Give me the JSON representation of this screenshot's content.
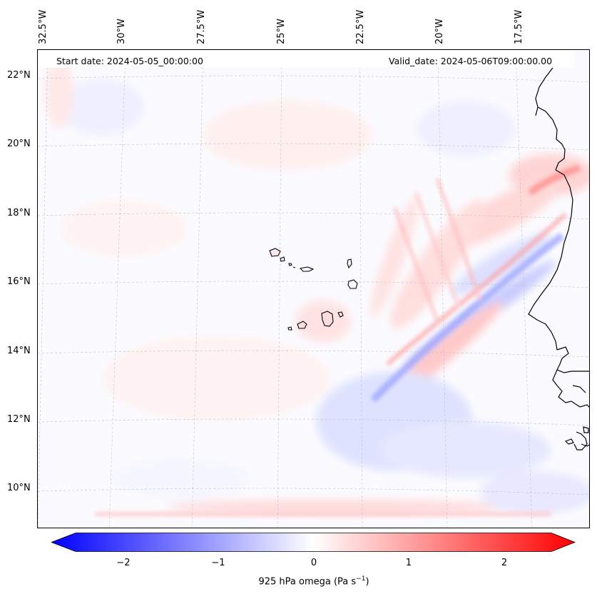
{
  "header": {
    "start_date": "Start date: 2024-05-05_00:00:00",
    "valid_date": "Valid_date: 2024-05-06T09:00:00.00"
  },
  "lon_labels": [
    "32.5°W",
    "30°W",
    "27.5°W",
    "25°W",
    "22.5°W",
    "20°W",
    "17.5°W"
  ],
  "lat_labels": [
    "22°N",
    "20°N",
    "18°N",
    "16°N",
    "14°N",
    "12°N",
    "10°N"
  ],
  "colorbar": {
    "ticks": [
      "−2",
      "−1",
      "0",
      "1",
      "2"
    ],
    "label_main": "925 hPa omega (Pa s",
    "label_sup": "−1",
    "label_close": ")",
    "min_value": -2.7,
    "max_value": 2.7,
    "colors": {
      "negative": "#0000ff",
      "zero": "#ffffff",
      "positive": "#ff0000"
    }
  },
  "map": {
    "coastline_color": "#000000",
    "gridline_color": "#bdbdbd"
  }
}
